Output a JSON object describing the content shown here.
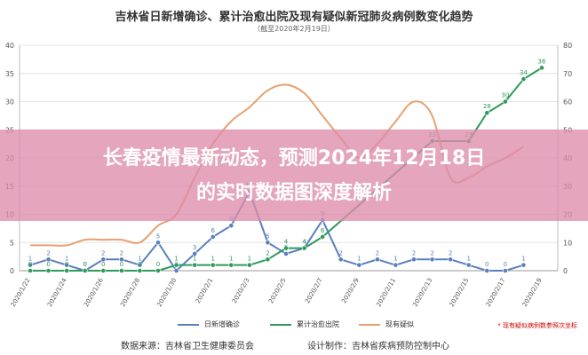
{
  "header": {
    "title": "吉林省日新增确诊、累计治愈出院及现有疑似新冠肺炎病例数变化趋势",
    "subtitle": "（截至2020年2月19日）"
  },
  "overlay": {
    "line1": "长春疫情最新动态，预测2024年12月18日",
    "line2": "的实时数据图深度解析"
  },
  "footer": {
    "source": "数据来源：吉林省卫生健康委员会",
    "designer": "设计制作：吉林省疾病预防控制中心"
  },
  "note": "* 现有疑似病例数参照次坐标",
  "colors": {
    "new_confirmed": "#5b7fbd",
    "cured": "#2e9a5b",
    "suspected": "#e8a070"
  },
  "chart_data": {
    "type": "line",
    "title": "吉林省日新增确诊、累计治愈出院及现有疑似新冠肺炎病例数变化趋势",
    "subtitle": "（截至2020年2月19日）",
    "x": [
      "2020/1/22",
      "2020/1/23",
      "2020/1/24",
      "2020/1/25",
      "2020/1/26",
      "2020/1/27",
      "2020/1/28",
      "2020/1/29",
      "2020/1/30",
      "2020/1/31",
      "2020/2/1",
      "2020/2/2",
      "2020/2/3",
      "2020/2/4",
      "2020/2/5",
      "2020/2/6",
      "2020/2/7",
      "2020/2/8",
      "2020/2/9",
      "2020/2/10",
      "2020/2/11",
      "2020/2/12",
      "2020/2/13",
      "2020/2/14",
      "2020/2/15",
      "2020/2/16",
      "2020/2/17",
      "2020/2/18",
      "2020/2/19"
    ],
    "xtick_labels": [
      "2020/1/22",
      "2020/1/24",
      "2020/1/26",
      "2020/1/28",
      "2020/1/30",
      "2020/2/1",
      "2020/2/3",
      "2020/2/5",
      "2020/2/7",
      "2020/2/9",
      "2020/2/11",
      "2020/2/13",
      "2020/2/15",
      "2020/2/17",
      "2020/2/19"
    ],
    "ylim": [
      0,
      40
    ],
    "y_ticks": [
      0,
      5,
      10,
      15,
      20,
      25,
      30,
      35,
      40
    ],
    "y2lim": [
      0,
      80
    ],
    "y2_ticks": [
      0,
      10,
      20,
      30,
      40,
      50,
      60,
      70,
      80
    ],
    "series": [
      {
        "name": "日新增确诊",
        "axis": "left",
        "values": [
          1,
          2,
          1,
          0,
          2,
          2,
          1,
          5,
          0,
          3,
          6,
          8,
          14,
          5,
          3,
          4,
          9,
          2,
          1,
          2,
          1,
          2,
          2,
          2,
          1,
          0,
          0,
          1,
          null
        ],
        "labels": [
          1,
          2,
          1,
          0,
          2,
          2,
          1,
          5,
          0,
          3,
          6,
          8,
          14,
          5,
          3,
          4,
          9,
          2,
          1,
          2,
          1,
          2,
          2,
          2,
          1,
          0,
          0,
          1,
          null
        ]
      },
      {
        "name": "累计治愈出院",
        "axis": "left",
        "values": [
          0,
          0,
          0,
          0,
          0,
          0,
          0,
          0,
          1,
          1,
          1,
          1,
          1,
          2,
          4,
          4,
          6,
          null,
          null,
          null,
          null,
          null,
          23,
          null,
          23,
          28,
          30,
          34,
          36
        ],
        "labels": [
          0,
          0,
          0,
          0,
          0,
          0,
          0,
          0,
          1,
          1,
          1,
          1,
          1,
          2,
          4,
          4,
          6,
          null,
          null,
          null,
          null,
          null,
          23,
          null,
          23,
          28,
          30,
          34,
          36
        ]
      },
      {
        "name": "现有疑似",
        "axis": "right",
        "values": [
          9,
          9,
          9,
          11,
          11,
          11,
          10,
          16,
          20,
          33,
          45,
          53,
          58,
          64,
          66,
          63,
          55,
          47,
          40,
          45,
          53,
          60,
          55,
          33,
          33,
          37,
          40,
          44,
          null
        ]
      }
    ]
  }
}
